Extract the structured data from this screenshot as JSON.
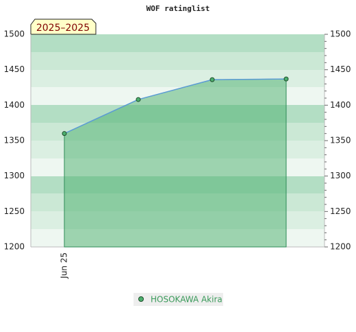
{
  "chart_data": {
    "type": "area",
    "title": "WOF ratinglist",
    "badge": "2025–2025",
    "categories": [
      "Jun 25",
      null,
      null,
      null
    ],
    "series": [
      {
        "name": "HOSOKAWA Akira",
        "color": "#4caf6e",
        "line_color": "#5b9bd5",
        "values": [
          1360,
          1408,
          1436,
          1437
        ]
      }
    ],
    "ylim": [
      1200,
      1500
    ],
    "yticks": [
      1200,
      1250,
      1300,
      1350,
      1400,
      1450,
      1500
    ]
  }
}
